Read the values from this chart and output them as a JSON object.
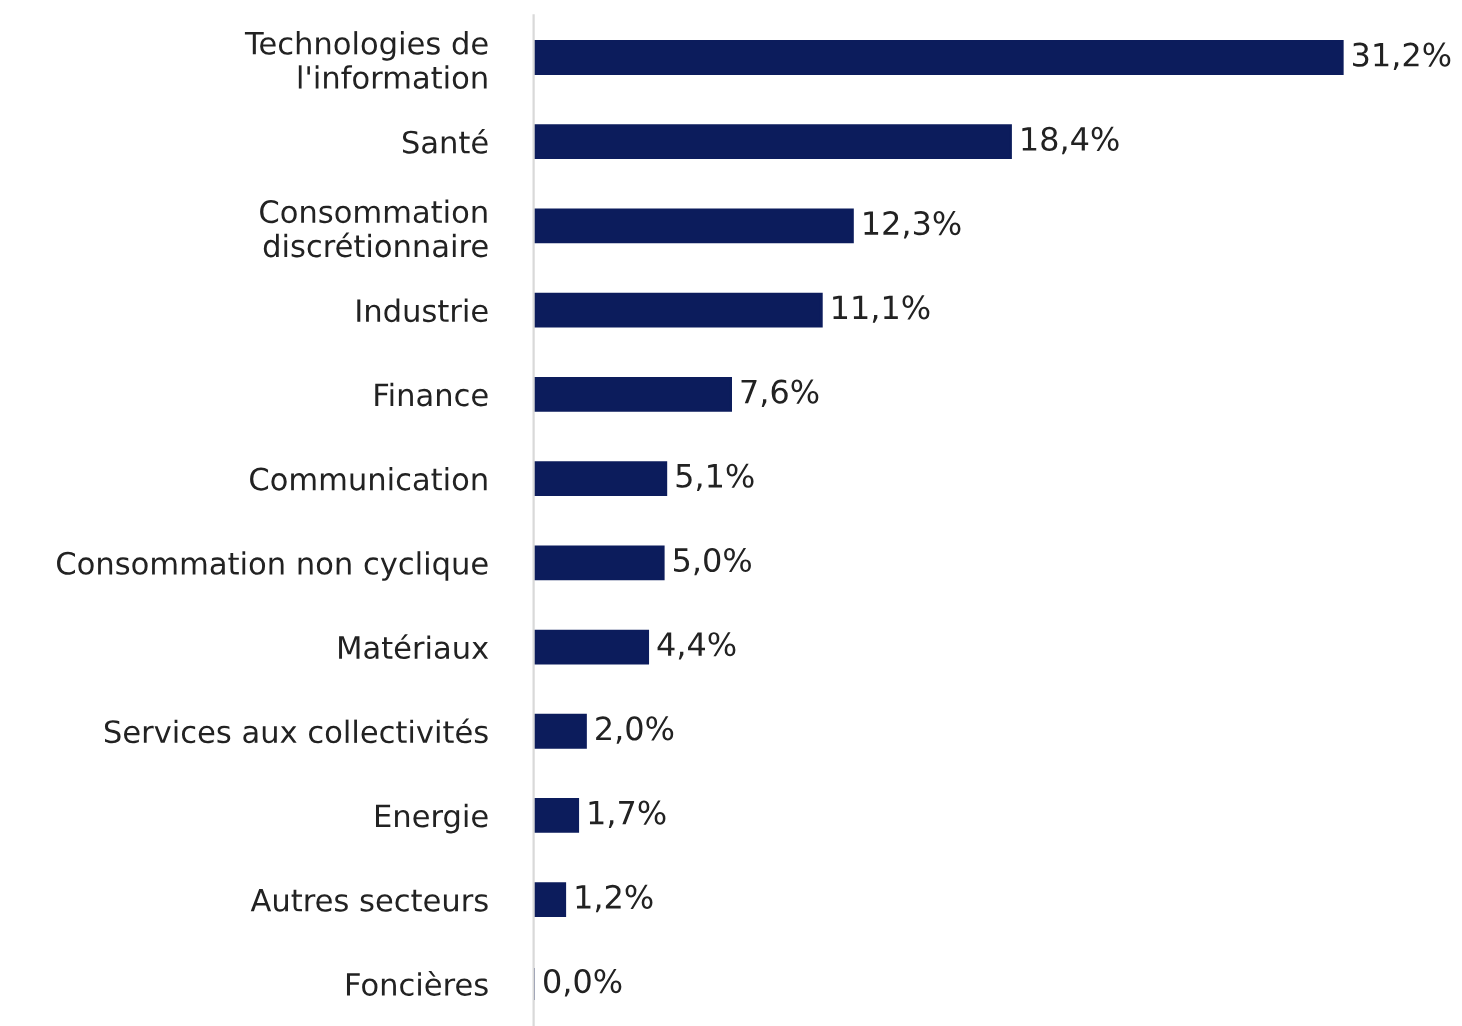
{
  "chart_data": {
    "type": "bar",
    "orientation": "horizontal",
    "categories": [
      "Technologies de\nl'information",
      "Santé",
      "Consommation\ndiscrétionnaire",
      "Industrie",
      "Finance",
      "Communication",
      "Consommation non cyclique",
      "Matériaux",
      "Services aux collectivités",
      "Energie",
      "Autres secteurs",
      "Foncières"
    ],
    "values": [
      31.2,
      18.4,
      12.3,
      11.1,
      7.6,
      5.1,
      5.0,
      4.4,
      2.0,
      1.7,
      1.2,
      0.0
    ],
    "value_labels": [
      "31,2%",
      "18,4%",
      "12,3%",
      "11,1%",
      "7,6%",
      "5,1%",
      "5,0%",
      "4,4%",
      "2,0%",
      "1,7%",
      "1,2%",
      "0,0%"
    ],
    "color": "#0c1c5c",
    "grid": false,
    "legend": false
  }
}
